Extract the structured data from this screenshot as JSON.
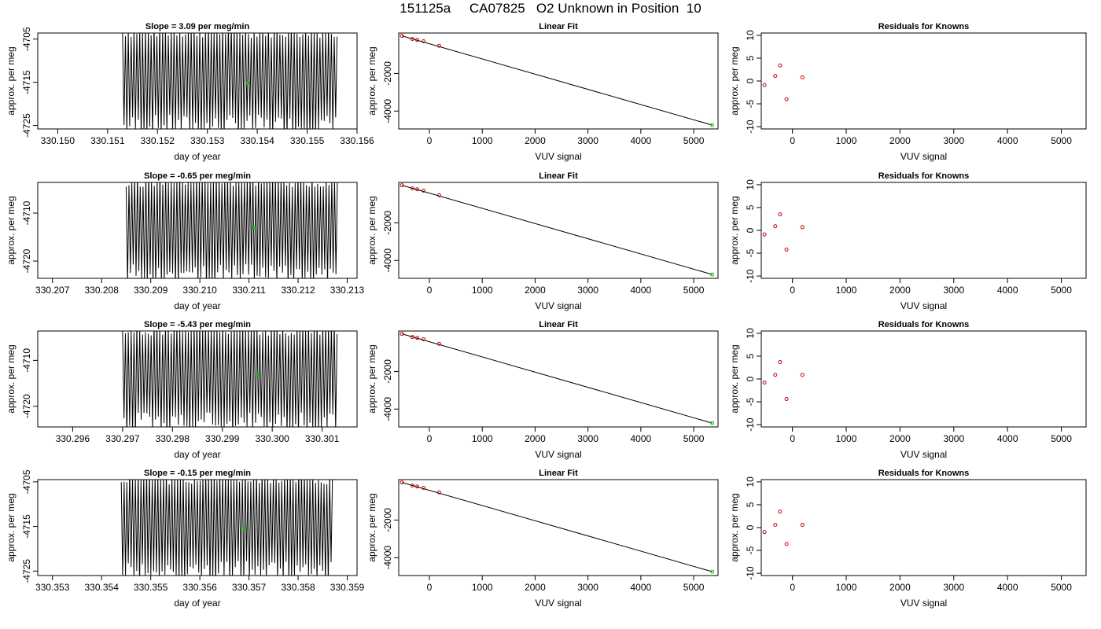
{
  "page_title": "151125a     CA07825   O2 Unknown in Position  10",
  "colors": {
    "trace": "#000000",
    "known_points": "#cc0000",
    "unknown_point": "#00cc00"
  },
  "chart_data": [
    {
      "type": "line",
      "row": 1,
      "panel": "time-series",
      "title": "Slope =  3.09  per meg/min",
      "xlabel": "day of year",
      "ylabel": "approx. per meg",
      "xlim": [
        330.1496,
        330.156
      ],
      "ylim": [
        -4725.8,
        -4703.6
      ],
      "xticks": [
        330.15,
        330.151,
        330.152,
        330.153,
        330.154,
        330.155,
        330.156
      ],
      "xtick_labels": [
        "330.150",
        "330.151",
        "330.152",
        "330.153",
        "330.154",
        "330.155",
        "330.156"
      ],
      "yticks": [
        -4725,
        -4715,
        -4705
      ],
      "ytick_labels": [
        "-4725",
        "-4715",
        "-4705"
      ],
      "trace_x_range": [
        330.1513,
        330.1556
      ],
      "marker": {
        "x": 330.1538,
        "y": -4715.2
      }
    },
    {
      "type": "scatter",
      "row": 1,
      "panel": "linear-fit",
      "title": "Linear Fit",
      "xlabel": "VUV signal",
      "ylabel": "approx. per meg",
      "xlim": [
        -580,
        5460
      ],
      "ylim": [
        -4950,
        150
      ],
      "xticks": [
        0,
        1000,
        2000,
        3000,
        4000,
        5000
      ],
      "xtick_labels": [
        "0",
        "1000",
        "2000",
        "3000",
        "4000",
        "5000"
      ],
      "yticks": [
        -4000,
        -2000
      ],
      "ytick_labels": [
        "-4000",
        "-2000"
      ],
      "knowns": [
        {
          "x": -520,
          "y": 0
        },
        {
          "x": -320,
          "y": -170
        },
        {
          "x": -230,
          "y": -215
        },
        {
          "x": -110,
          "y": -290
        },
        {
          "x": 185,
          "y": -530
        }
      ],
      "unknown": {
        "x": 5350,
        "y": -4745
      },
      "fit_line": [
        [
          -520,
          0
        ],
        [
          5350,
          -4745
        ]
      ]
    },
    {
      "type": "scatter",
      "row": 1,
      "panel": "residuals",
      "title": "Residuals for Knowns",
      "xlabel": "VUV signal",
      "ylabel": "approx. per meg",
      "xlim": [
        -580,
        5460
      ],
      "ylim": [
        -10.5,
        10.5
      ],
      "xticks": [
        0,
        1000,
        2000,
        3000,
        4000,
        5000
      ],
      "xtick_labels": [
        "0",
        "1000",
        "2000",
        "3000",
        "4000",
        "5000"
      ],
      "yticks": [
        -10,
        -5,
        0,
        5,
        10
      ],
      "ytick_labels": [
        "-10",
        "-5",
        "0",
        "5",
        "10"
      ],
      "points": [
        {
          "x": -520,
          "y": -0.9
        },
        {
          "x": -320,
          "y": 1.1
        },
        {
          "x": -230,
          "y": 3.4
        },
        {
          "x": -110,
          "y": -4.0
        },
        {
          "x": 185,
          "y": 0.8
        }
      ]
    },
    {
      "type": "line",
      "row": 2,
      "panel": "time-series",
      "title": "Slope =  -0.65  per meg/min",
      "xlabel": "day of year",
      "ylabel": "approx. per meg",
      "xlim": [
        330.2067,
        330.2132
      ],
      "ylim": [
        -4723.6,
        -4703.6
      ],
      "xticks": [
        330.207,
        330.208,
        330.209,
        330.21,
        330.211,
        330.212,
        330.213
      ],
      "xtick_labels": [
        "330.207",
        "330.208",
        "330.209",
        "330.210",
        "330.211",
        "330.212",
        "330.213"
      ],
      "yticks": [
        -4720,
        -4710
      ],
      "ytick_labels": [
        "-4720",
        "-4710"
      ],
      "trace_x_range": [
        330.2085,
        330.2128
      ],
      "marker": {
        "x": 330.2111,
        "y": -4713.0
      }
    },
    {
      "type": "scatter",
      "row": 2,
      "panel": "linear-fit",
      "title": "Linear Fit",
      "xlabel": "VUV signal",
      "ylabel": "approx. per meg",
      "xlim": [
        -580,
        5460
      ],
      "ylim": [
        -4950,
        150
      ],
      "xticks": [
        0,
        1000,
        2000,
        3000,
        4000,
        5000
      ],
      "xtick_labels": [
        "0",
        "1000",
        "2000",
        "3000",
        "4000",
        "5000"
      ],
      "yticks": [
        -4000,
        -2000
      ],
      "ytick_labels": [
        "-4000",
        "-2000"
      ],
      "knowns": [
        {
          "x": -520,
          "y": 0
        },
        {
          "x": -320,
          "y": -170
        },
        {
          "x": -230,
          "y": -215
        },
        {
          "x": -110,
          "y": -290
        },
        {
          "x": 185,
          "y": -530
        }
      ],
      "unknown": {
        "x": 5350,
        "y": -4745
      },
      "fit_line": [
        [
          -520,
          0
        ],
        [
          5350,
          -4745
        ]
      ]
    },
    {
      "type": "scatter",
      "row": 2,
      "panel": "residuals",
      "title": "Residuals for Knowns",
      "xlabel": "VUV signal",
      "ylabel": "approx. per meg",
      "xlim": [
        -580,
        5460
      ],
      "ylim": [
        -10.5,
        10.5
      ],
      "xticks": [
        0,
        1000,
        2000,
        3000,
        4000,
        5000
      ],
      "xtick_labels": [
        "0",
        "1000",
        "2000",
        "3000",
        "4000",
        "5000"
      ],
      "yticks": [
        -10,
        -5,
        0,
        5,
        10
      ],
      "ytick_labels": [
        "-10",
        "-5",
        "0",
        "5",
        "10"
      ],
      "points": [
        {
          "x": -520,
          "y": -0.9
        },
        {
          "x": -320,
          "y": 0.9
        },
        {
          "x": -230,
          "y": 3.5
        },
        {
          "x": -110,
          "y": -4.2
        },
        {
          "x": 185,
          "y": 0.7
        }
      ]
    },
    {
      "type": "line",
      "row": 3,
      "panel": "time-series",
      "title": "Slope =  -5.43  per meg/min",
      "xlabel": "day of year",
      "ylabel": "approx. per meg",
      "xlim": [
        330.2953,
        330.3017
      ],
      "ylim": [
        -4724.5,
        -4703.6
      ],
      "xticks": [
        330.296,
        330.297,
        330.298,
        330.299,
        330.3,
        330.301
      ],
      "xtick_labels": [
        "330.296",
        "330.297",
        "330.298",
        "330.299",
        "330.300",
        "330.301"
      ],
      "yticks": [
        -4720,
        -4710
      ],
      "ytick_labels": [
        "-4720",
        "-4710"
      ],
      "trace_x_range": [
        330.297,
        330.3013
      ],
      "marker": {
        "x": 330.2997,
        "y": -4713.0
      }
    },
    {
      "type": "scatter",
      "row": 3,
      "panel": "linear-fit",
      "title": "Linear Fit",
      "xlabel": "VUV signal",
      "ylabel": "approx. per meg",
      "xlim": [
        -580,
        5460
      ],
      "ylim": [
        -4950,
        150
      ],
      "xticks": [
        0,
        1000,
        2000,
        3000,
        4000,
        5000
      ],
      "xtick_labels": [
        "0",
        "1000",
        "2000",
        "3000",
        "4000",
        "5000"
      ],
      "yticks": [
        -4000,
        -2000
      ],
      "ytick_labels": [
        "-4000",
        "-2000"
      ],
      "knowns": [
        {
          "x": -520,
          "y": 0
        },
        {
          "x": -320,
          "y": -170
        },
        {
          "x": -230,
          "y": -215
        },
        {
          "x": -110,
          "y": -290
        },
        {
          "x": 185,
          "y": -530
        }
      ],
      "unknown": {
        "x": 5350,
        "y": -4745
      },
      "fit_line": [
        [
          -520,
          0
        ],
        [
          5350,
          -4745
        ]
      ]
    },
    {
      "type": "scatter",
      "row": 3,
      "panel": "residuals",
      "title": "Residuals for Knowns",
      "xlabel": "VUV signal",
      "ylabel": "approx. per meg",
      "xlim": [
        -580,
        5460
      ],
      "ylim": [
        -10.5,
        10.5
      ],
      "xticks": [
        0,
        1000,
        2000,
        3000,
        4000,
        5000
      ],
      "xtick_labels": [
        "0",
        "1000",
        "2000",
        "3000",
        "4000",
        "5000"
      ],
      "yticks": [
        -10,
        -5,
        0,
        5,
        10
      ],
      "ytick_labels": [
        "-10",
        "-5",
        "0",
        "5",
        "10"
      ],
      "points": [
        {
          "x": -520,
          "y": -0.8
        },
        {
          "x": -320,
          "y": 0.9
        },
        {
          "x": -230,
          "y": 3.7
        },
        {
          "x": -110,
          "y": -4.4
        },
        {
          "x": 185,
          "y": 0.9
        }
      ]
    },
    {
      "type": "line",
      "row": 4,
      "panel": "time-series",
      "title": "Slope =  -0.15  per meg/min",
      "xlabel": "day of year",
      "ylabel": "approx. per meg",
      "xlim": [
        330.3527,
        330.3592
      ],
      "ylim": [
        -4726,
        -4704.5
      ],
      "xticks": [
        330.353,
        330.354,
        330.355,
        330.356,
        330.357,
        330.358,
        330.359
      ],
      "xtick_labels": [
        "330.353",
        "330.354",
        "330.355",
        "330.356",
        "330.357",
        "330.358",
        "330.359"
      ],
      "yticks": [
        -4725,
        -4715,
        -4705
      ],
      "ytick_labels": [
        "-4725",
        "-4715",
        "-4705"
      ],
      "trace_x_range": [
        330.3544,
        330.3587
      ],
      "marker": {
        "x": 330.3569,
        "y": -4715.4
      }
    },
    {
      "type": "scatter",
      "row": 4,
      "panel": "linear-fit",
      "title": "Linear Fit",
      "xlabel": "VUV signal",
      "ylabel": "approx. per meg",
      "xlim": [
        -580,
        5460
      ],
      "ylim": [
        -4950,
        150
      ],
      "xticks": [
        0,
        1000,
        2000,
        3000,
        4000,
        5000
      ],
      "xtick_labels": [
        "0",
        "1000",
        "2000",
        "3000",
        "4000",
        "5000"
      ],
      "yticks": [
        -4000,
        -2000
      ],
      "ytick_labels": [
        "-4000",
        "-2000"
      ],
      "knowns": [
        {
          "x": -520,
          "y": 0
        },
        {
          "x": -320,
          "y": -170
        },
        {
          "x": -230,
          "y": -215
        },
        {
          "x": -110,
          "y": -290
        },
        {
          "x": 185,
          "y": -530
        }
      ],
      "unknown": {
        "x": 5350,
        "y": -4745
      },
      "fit_line": [
        [
          -520,
          0
        ],
        [
          5350,
          -4745
        ]
      ]
    },
    {
      "type": "scatter",
      "row": 4,
      "panel": "residuals",
      "title": "Residuals for Knowns",
      "xlabel": "VUV signal",
      "ylabel": "approx. per meg",
      "xlim": [
        -580,
        5460
      ],
      "ylim": [
        -10.5,
        10.5
      ],
      "xticks": [
        0,
        1000,
        2000,
        3000,
        4000,
        5000
      ],
      "xtick_labels": [
        "0",
        "1000",
        "2000",
        "3000",
        "4000",
        "5000"
      ],
      "yticks": [
        -10,
        -5,
        0,
        5,
        10
      ],
      "ytick_labels": [
        "-10",
        "-5",
        "0",
        "5",
        "10"
      ],
      "points": [
        {
          "x": -520,
          "y": -1.0
        },
        {
          "x": -320,
          "y": 0.6
        },
        {
          "x": -230,
          "y": 3.5
        },
        {
          "x": -110,
          "y": -3.6
        },
        {
          "x": 185,
          "y": 0.6
        }
      ]
    }
  ]
}
